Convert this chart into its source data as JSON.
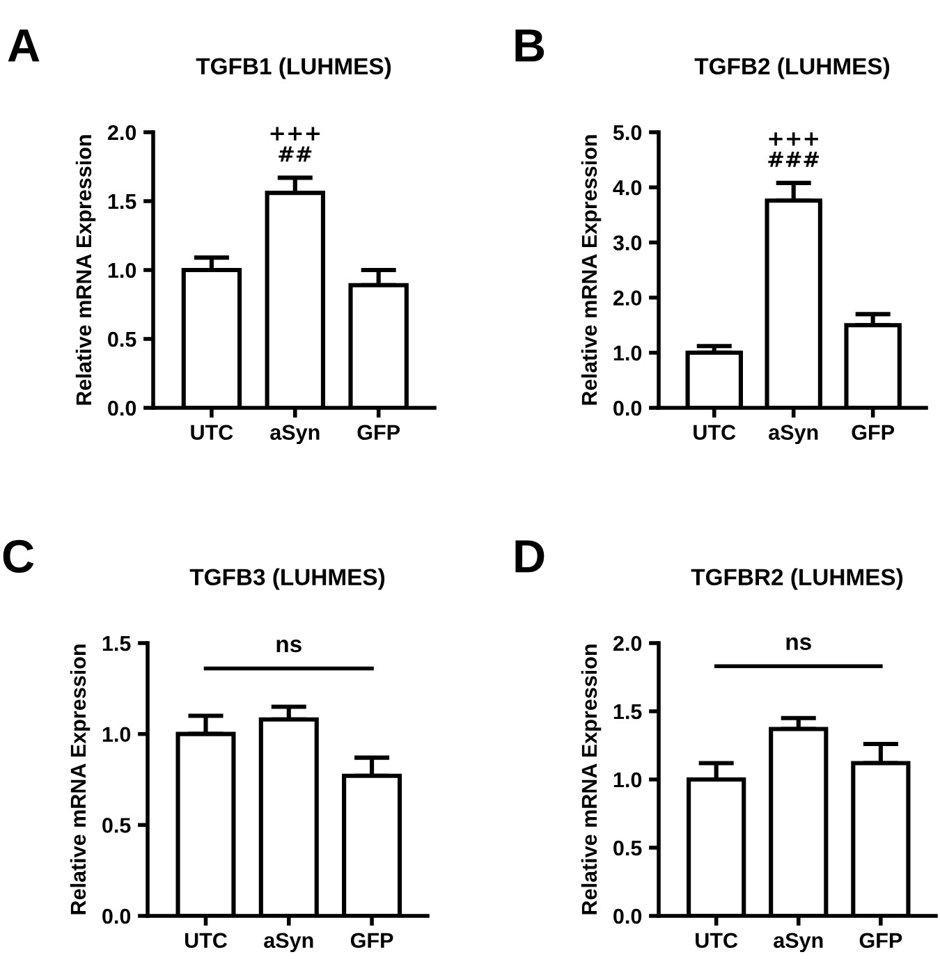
{
  "chart_data": [
    {
      "type": "bar",
      "title": "TGFB1 (LUHMES)",
      "ylabel": "Relative mRNA Expression",
      "categories": [
        "UTC",
        "aSyn",
        "GFP"
      ],
      "values": [
        1.0,
        1.56,
        0.89
      ],
      "errors": [
        [
          1.0,
          1.09
        ],
        [
          1.56,
          1.67
        ],
        [
          0.89,
          1.0
        ]
      ],
      "color": "#ffffff",
      "ylim": [
        0,
        2.0
      ],
      "yticks": [
        {
          "value": 0,
          "label": "0.0"
        },
        {
          "value": 0.5,
          "label": "0.5"
        },
        {
          "value": 1,
          "label": "1.0"
        },
        {
          "value": 1.5,
          "label": "1.5"
        },
        {
          "value": 2,
          "label": "2.0"
        }
      ],
      "annotations": [
        "A",
        "##",
        "+++"
      ]
    },
    {
      "type": "bar",
      "title": "TGFB2 (LUHMES)",
      "ylabel": "Relative mRNA Expression",
      "categories": [
        "UTC",
        "aSyn",
        "GFP"
      ],
      "values": [
        1.0,
        3.76,
        1.5
      ],
      "errors": [
        [
          1.0,
          1.12
        ],
        [
          3.76,
          4.08
        ],
        [
          1.5,
          1.7
        ]
      ],
      "color": "#ffffff",
      "ylim": [
        0,
        5.0
      ],
      "yticks": [
        {
          "value": 0,
          "label": "0.0"
        },
        {
          "value": 1,
          "label": "1.0"
        },
        {
          "value": 2,
          "label": "2.0"
        },
        {
          "value": 3,
          "label": "3.0"
        },
        {
          "value": 4,
          "label": "4.0"
        },
        {
          "value": 5,
          "label": "5.0"
        }
      ],
      "annotations": [
        "B",
        "###",
        "+++"
      ]
    },
    {
      "type": "bar",
      "title": "TGFB3 (LUHMES)",
      "ylabel": "Relative mRNA Expression",
      "categories": [
        "UTC",
        "aSyn",
        "GFP"
      ],
      "values": [
        1.0,
        1.08,
        0.77
      ],
      "errors": [
        [
          1.0,
          1.1
        ],
        [
          1.08,
          1.15
        ],
        [
          0.77,
          0.87
        ]
      ],
      "color": "#ffffff",
      "ylim": [
        0,
        1.5
      ],
      "yticks": [
        {
          "value": 0,
          "label": "0.0"
        },
        {
          "value": 0.5,
          "label": "0.5"
        },
        {
          "value": 1,
          "label": "1.0"
        },
        {
          "value": 1.5,
          "label": "1.5"
        }
      ],
      "ref_lines": [
        {
          "axis": "y",
          "value": 1.36,
          "label": "ns"
        }
      ],
      "annotations": [
        "C"
      ]
    },
    {
      "type": "bar",
      "title": "TGFBR2 (LUHMES)",
      "ylabel": "Relative mRNA Expression",
      "categories": [
        "UTC",
        "aSyn",
        "GFP"
      ],
      "values": [
        1.0,
        1.37,
        1.12
      ],
      "errors": [
        [
          1.0,
          1.12
        ],
        [
          1.37,
          1.45
        ],
        [
          1.12,
          1.26
        ]
      ],
      "color": "#ffffff",
      "ylim": [
        0,
        2.0
      ],
      "yticks": [
        {
          "value": 0,
          "label": "0.0"
        },
        {
          "value": 0.5,
          "label": "0.5"
        },
        {
          "value": 1,
          "label": "1.0"
        },
        {
          "value": 1.5,
          "label": "1.5"
        },
        {
          "value": 2,
          "label": "2.0"
        }
      ],
      "ref_lines": [
        {
          "axis": "y",
          "value": 1.83,
          "label": "ns"
        }
      ],
      "annotations": [
        "D"
      ]
    }
  ]
}
